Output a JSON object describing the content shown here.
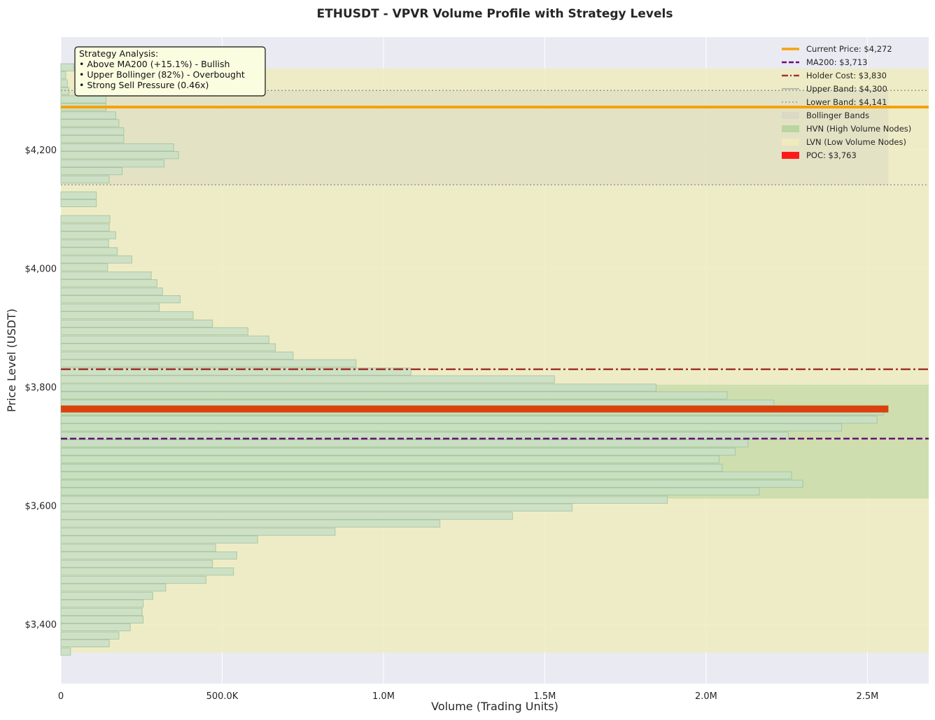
{
  "chart_data": {
    "type": "bar",
    "orientation": "horizontal",
    "title": "ETHUSDT - VPVR Volume Profile with Strategy Levels",
    "xlabel": "Volume (Trading Units)",
    "ylabel": "Price Level (USDT)",
    "xlim": [
      0,
      2690000
    ],
    "ylim": [
      3300,
      4390
    ],
    "x_ticks": [
      {
        "value": 0,
        "label": "0"
      },
      {
        "value": 500000,
        "label": "500.0K"
      },
      {
        "value": 1000000,
        "label": "1.0M"
      },
      {
        "value": 1500000,
        "label": "1.5M"
      },
      {
        "value": 2000000,
        "label": "2.0M"
      },
      {
        "value": 2500000,
        "label": "2.5M"
      }
    ],
    "y_ticks": [
      {
        "value": 3400,
        "label": "$3,400"
      },
      {
        "value": 3600,
        "label": "$3,600"
      },
      {
        "value": 3800,
        "label": "$3,800"
      },
      {
        "value": 4000,
        "label": "$4,000"
      },
      {
        "value": 4200,
        "label": "$4,200"
      }
    ],
    "grid": true,
    "legend_position": "top-right",
    "bin_height": 12.2,
    "bars": [
      {
        "price": 3354,
        "volume": 30000
      },
      {
        "price": 3368,
        "volume": 150000
      },
      {
        "price": 3381,
        "volume": 180000
      },
      {
        "price": 3395,
        "volume": 215000
      },
      {
        "price": 3408,
        "volume": 255000
      },
      {
        "price": 3421,
        "volume": 252000
      },
      {
        "price": 3435,
        "volume": 255000
      },
      {
        "price": 3448,
        "volume": 285000
      },
      {
        "price": 3462,
        "volume": 325000
      },
      {
        "price": 3475,
        "volume": 450000
      },
      {
        "price": 3489,
        "volume": 535000
      },
      {
        "price": 3502,
        "volume": 470000
      },
      {
        "price": 3516,
        "volume": 545000
      },
      {
        "price": 3529,
        "volume": 480000
      },
      {
        "price": 3543,
        "volume": 610000
      },
      {
        "price": 3556,
        "volume": 850000
      },
      {
        "price": 3570,
        "volume": 1175000
      },
      {
        "price": 3583,
        "volume": 1400000
      },
      {
        "price": 3597,
        "volume": 1585000
      },
      {
        "price": 3610,
        "volume": 1880000
      },
      {
        "price": 3624,
        "volume": 2165000
      },
      {
        "price": 3637,
        "volume": 2300000
      },
      {
        "price": 3651,
        "volume": 2265000
      },
      {
        "price": 3664,
        "volume": 2050000
      },
      {
        "price": 3678,
        "volume": 2040000
      },
      {
        "price": 3691,
        "volume": 2090000
      },
      {
        "price": 3705,
        "volume": 2130000
      },
      {
        "price": 3718,
        "volume": 2255000
      },
      {
        "price": 3732,
        "volume": 2420000
      },
      {
        "price": 3745,
        "volume": 2530000
      },
      {
        "price": 3759,
        "volume": 2550000
      },
      {
        "price": 3772,
        "volume": 2210000
      },
      {
        "price": 3786,
        "volume": 2065000
      },
      {
        "price": 3799,
        "volume": 1845000
      },
      {
        "price": 3813,
        "volume": 1530000
      },
      {
        "price": 3826,
        "volume": 1085000
      },
      {
        "price": 3840,
        "volume": 915000
      },
      {
        "price": 3853,
        "volume": 720000
      },
      {
        "price": 3867,
        "volume": 665000
      },
      {
        "price": 3880,
        "volume": 645000
      },
      {
        "price": 3894,
        "volume": 580000
      },
      {
        "price": 3907,
        "volume": 470000
      },
      {
        "price": 3921,
        "volume": 410000
      },
      {
        "price": 3934,
        "volume": 305000
      },
      {
        "price": 3948,
        "volume": 370000
      },
      {
        "price": 3961,
        "volume": 315000
      },
      {
        "price": 3975,
        "volume": 298000
      },
      {
        "price": 3988,
        "volume": 280000
      },
      {
        "price": 4002,
        "volume": 145000
      },
      {
        "price": 4015,
        "volume": 220000
      },
      {
        "price": 4029,
        "volume": 175000
      },
      {
        "price": 4042,
        "volume": 148000
      },
      {
        "price": 4056,
        "volume": 170000
      },
      {
        "price": 4069,
        "volume": 150000
      },
      {
        "price": 4083,
        "volume": 152000
      },
      {
        "price": 4096,
        "volume": 0
      },
      {
        "price": 4110,
        "volume": 110000
      },
      {
        "price": 4123,
        "volume": 110000
      },
      {
        "price": 4137,
        "volume": 0
      },
      {
        "price": 4150,
        "volume": 150000
      },
      {
        "price": 4164,
        "volume": 190000
      },
      {
        "price": 4177,
        "volume": 320000
      },
      {
        "price": 4191,
        "volume": 365000
      },
      {
        "price": 4204,
        "volume": 350000
      },
      {
        "price": 4218,
        "volume": 195000
      },
      {
        "price": 4231,
        "volume": 195000
      },
      {
        "price": 4245,
        "volume": 180000
      },
      {
        "price": 4258,
        "volume": 170000
      },
      {
        "price": 4272,
        "volume": 140000
      },
      {
        "price": 4285,
        "volume": 140000
      },
      {
        "price": 4299,
        "volume": 25000
      },
      {
        "price": 4312,
        "volume": 20000
      },
      {
        "price": 4326,
        "volume": 15000
      },
      {
        "price": 4339,
        "volume": 40000
      }
    ],
    "levels": {
      "current_price": 4272,
      "ma200": 3713,
      "holder_cost": 3830,
      "upper_band": 4300,
      "lower_band": 4141,
      "poc": 3763
    },
    "zones": {
      "bollinger": [
        4141,
        4300
      ],
      "hvn": [
        3612,
        3804
      ],
      "lvn": [
        3352,
        4337
      ]
    },
    "colors": {
      "bar_fill": "#c9e0c6",
      "bar_edge": "#9fc39c",
      "current_price": "#f5a20a",
      "ma200": "#6a0e78",
      "holder_cost": "#a2362c",
      "bands": "#999999",
      "bollinger_fill": "#d8d8c4",
      "hvn_fill": "#b5d49a",
      "lvn_fill": "#efecbe",
      "poc": "#d9420f",
      "poc_legend": "#ff1a1a",
      "plot_bg": "#eaeaf2"
    },
    "legend": [
      {
        "label": "Current Price: $4,272",
        "style": "solid-thick",
        "color_key": "current_price"
      },
      {
        "label": "MA200: $3,713",
        "style": "dashed",
        "color_key": "ma200"
      },
      {
        "label": "Holder Cost: $3,830",
        "style": "dashdot",
        "color_key": "holder_cost"
      },
      {
        "label": "Upper Band: $4,300",
        "style": "solid-thin",
        "color_key": "bands"
      },
      {
        "label": "Lower Band: $4,141",
        "style": "dotted",
        "color_key": "bands"
      },
      {
        "label": "Bollinger Bands",
        "style": "patch",
        "color_key": "bollinger_fill"
      },
      {
        "label": "HVN (High Volume Nodes)",
        "style": "patch",
        "color_key": "hvn_fill"
      },
      {
        "label": "LVN (Low Volume Nodes)",
        "style": "patch",
        "color_key": "lvn_fill"
      },
      {
        "label": "POC: $3,763",
        "style": "patch",
        "color_key": "poc_legend"
      }
    ],
    "annotation": {
      "lines": [
        "Strategy Analysis:",
        "• Above MA200 (+15.1%) - Bullish",
        "• Upper Bollinger (82%) - Overbought",
        "• Strong Sell Pressure (0.46x)"
      ]
    }
  }
}
